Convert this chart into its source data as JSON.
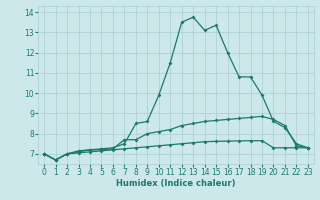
{
  "xlabel": "Humidex (Indice chaleur)",
  "xlim": [
    -0.5,
    23.5
  ],
  "ylim": [
    6.5,
    14.3
  ],
  "yticks": [
    7,
    8,
    9,
    10,
    11,
    12,
    13,
    14
  ],
  "xticks": [
    0,
    1,
    2,
    3,
    4,
    5,
    6,
    7,
    8,
    9,
    10,
    11,
    12,
    13,
    14,
    15,
    16,
    17,
    18,
    19,
    20,
    21,
    22,
    23
  ],
  "bg_color": "#cde8eb",
  "line_color": "#1a7a6e",
  "grid_color": "#aacdd1",
  "line1_x": [
    0,
    1,
    2,
    3,
    4,
    5,
    6,
    7,
    8,
    9,
    10,
    11,
    12,
    13,
    14,
    15,
    16,
    17,
    18,
    19,
    20,
    21,
    22,
    23
  ],
  "line1_y": [
    7.0,
    6.7,
    7.0,
    7.15,
    7.2,
    7.25,
    7.3,
    7.5,
    8.5,
    8.6,
    9.9,
    11.5,
    13.5,
    13.75,
    13.1,
    13.35,
    12.0,
    10.8,
    10.8,
    9.9,
    8.6,
    8.3,
    7.5,
    7.3
  ],
  "line2_x": [
    0,
    1,
    2,
    3,
    4,
    5,
    6,
    7,
    8,
    9,
    10,
    11,
    12,
    13,
    14,
    15,
    16,
    17,
    18,
    19,
    20,
    21,
    22,
    23
  ],
  "line2_y": [
    7.0,
    6.7,
    7.0,
    7.1,
    7.2,
    7.2,
    7.25,
    7.7,
    7.7,
    8.0,
    8.1,
    8.2,
    8.4,
    8.5,
    8.6,
    8.65,
    8.7,
    8.75,
    8.8,
    8.85,
    8.7,
    8.4,
    7.4,
    7.3
  ],
  "line3_x": [
    0,
    1,
    2,
    3,
    4,
    5,
    6,
    7,
    8,
    9,
    10,
    11,
    12,
    13,
    14,
    15,
    16,
    17,
    18,
    19,
    20,
    21,
    22,
    23
  ],
  "line3_y": [
    7.0,
    6.7,
    7.0,
    7.05,
    7.1,
    7.15,
    7.2,
    7.25,
    7.3,
    7.35,
    7.4,
    7.45,
    7.5,
    7.55,
    7.6,
    7.62,
    7.63,
    7.64,
    7.65,
    7.65,
    7.3,
    7.3,
    7.3,
    7.3
  ]
}
